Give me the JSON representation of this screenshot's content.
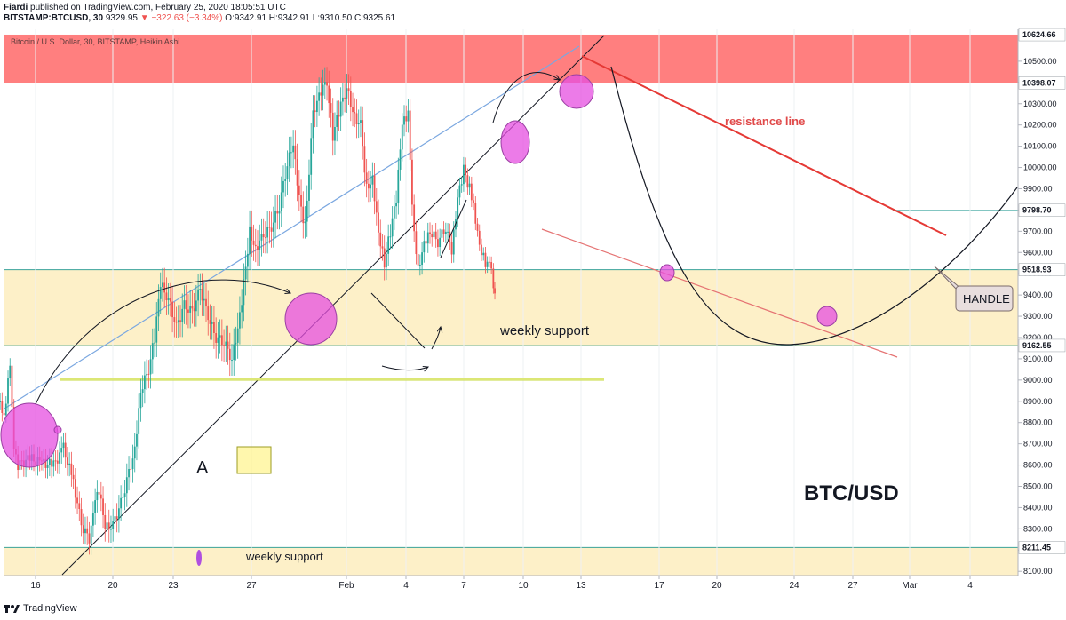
{
  "header": {
    "publisher": "Fiardi",
    "published_text": "published on TradingView.com, February 25, 2020 18:05:51 UTC",
    "symbol": "BITSTAMP:BTCUSD, 30",
    "last": "9329.95",
    "change": "−322.63 (−3.34%)",
    "ohlc": "O:9342.91 H:9342.91 L:9310.50 C:9325.61"
  },
  "footer": {
    "brand": "TradingView"
  },
  "chart_data": {
    "type": "candlestick",
    "title": "Bitcoin / U.S. Dollar, 30, BITSTAMP, Heikin Ashi",
    "big_label": "BTC/USD",
    "x_tick_labels": [
      "16",
      "20",
      "23",
      "27",
      "Feb",
      "4",
      "7",
      "10",
      "13",
      "17",
      "20",
      "24",
      "27",
      "Mar",
      "4"
    ],
    "y_ticks": [
      8100,
      8200,
      8300,
      8400,
      8500,
      8600,
      8700,
      8800,
      8900,
      9000,
      9100,
      9200,
      9300,
      9400,
      9500,
      9600,
      9700,
      9800,
      9900,
      10000,
      10100,
      10200,
      10300,
      10400,
      10500
    ],
    "ylim": [
      8080,
      10650
    ],
    "price_labels": [
      {
        "value": 10624.66,
        "text": "10624.66",
        "bg": "#ffffff",
        "fg": "#131722"
      },
      {
        "value": 10398.07,
        "text": "10398.07",
        "bg": "#ffffff",
        "fg": "#131722"
      },
      {
        "value": 9798.7,
        "text": "9798.70",
        "bg": "#ffffff",
        "fg": "#131722"
      },
      {
        "value": 9518.93,
        "text": "9518.93",
        "bg": "#ffffff",
        "fg": "#131722"
      },
      {
        "value": 9162.55,
        "text": "9162.55",
        "bg": "#ffffff",
        "fg": "#131722"
      },
      {
        "value": 8211.45,
        "text": "8211.45",
        "bg": "#ffffff",
        "fg": "#131722"
      }
    ],
    "zones": [
      {
        "y1": 10398,
        "y2": 10625,
        "color": "#ff7f7f"
      },
      {
        "y1": 9162,
        "y2": 9519,
        "color": "#fdf0c8"
      },
      {
        "y1": 8080,
        "y2": 8212,
        "color": "#fdf0c8"
      }
    ],
    "annotations": {
      "resistance": "resistance line",
      "weekly_support_mid": "weekly support",
      "weekly_support_low": "weekly support",
      "letter_a": "A",
      "handle": "HANDLE"
    },
    "price_path": [
      [
        9.0,
        8750
      ],
      [
        12.5,
        8760
      ],
      [
        13.5,
        8850
      ],
      [
        14.0,
        8950
      ],
      [
        14.5,
        8830
      ],
      [
        14.8,
        9080
      ],
      [
        15.0,
        8700
      ],
      [
        15.2,
        8600
      ],
      [
        15.8,
        8630
      ],
      [
        16.4,
        8610
      ],
      [
        17.0,
        8600
      ],
      [
        17.5,
        8680
      ],
      [
        18.0,
        8520
      ],
      [
        18.4,
        8320
      ],
      [
        18.8,
        8250
      ],
      [
        19.0,
        8400
      ],
      [
        19.3,
        8480
      ],
      [
        19.6,
        8300
      ],
      [
        20.0,
        8320
      ],
      [
        20.4,
        8420
      ],
      [
        20.8,
        8560
      ],
      [
        21.1,
        8680
      ],
      [
        21.4,
        8950
      ],
      [
        21.8,
        9050
      ],
      [
        22.1,
        9200
      ],
      [
        22.4,
        9450
      ],
      [
        22.8,
        9380
      ],
      [
        23.2,
        9250
      ],
      [
        23.6,
        9350
      ],
      [
        24.0,
        9320
      ],
      [
        24.4,
        9430
      ],
      [
        24.8,
        9300
      ],
      [
        25.2,
        9200
      ],
      [
        25.6,
        9180
      ],
      [
        26.0,
        9100
      ],
      [
        26.3,
        9230
      ],
      [
        26.6,
        9450
      ],
      [
        26.9,
        9700
      ],
      [
        27.2,
        9620
      ],
      [
        27.6,
        9680
      ],
      [
        28.0,
        9720
      ],
      [
        28.4,
        9820
      ],
      [
        28.8,
        10020
      ],
      [
        29.1,
        10100
      ],
      [
        29.4,
        9850
      ],
      [
        29.7,
        9720
      ],
      [
        30.1,
        10250
      ],
      [
        30.4,
        10350
      ],
      [
        30.8,
        10400
      ],
      [
        31.1,
        10150
      ],
      [
        31.4,
        10260
      ],
      [
        31.8,
        10380
      ],
      [
        32.1,
        10250
      ],
      [
        32.5,
        10200
      ],
      [
        32.8,
        9900
      ],
      [
        33.1,
        9950
      ],
      [
        33.4,
        9700
      ],
      [
        33.7,
        9550
      ],
      [
        34.0,
        9700
      ],
      [
        34.3,
        9850
      ],
      [
        34.6,
        10200
      ],
      [
        34.9,
        10250
      ],
      [
        35.1,
        9800
      ],
      [
        35.4,
        9520
      ],
      [
        35.7,
        9650
      ],
      [
        36.0,
        9700
      ],
      [
        36.4,
        9650
      ],
      [
        36.8,
        9720
      ],
      [
        37.1,
        9600
      ],
      [
        37.4,
        9850
      ],
      [
        37.7,
        9990
      ],
      [
        38.0,
        9900
      ],
      [
        38.2,
        9820
      ],
      [
        38.5,
        9640
      ],
      [
        38.8,
        9550
      ],
      [
        39.0,
        9580
      ],
      [
        39.2,
        9450
      ],
      [
        39.35,
        9320
      ]
    ]
  }
}
